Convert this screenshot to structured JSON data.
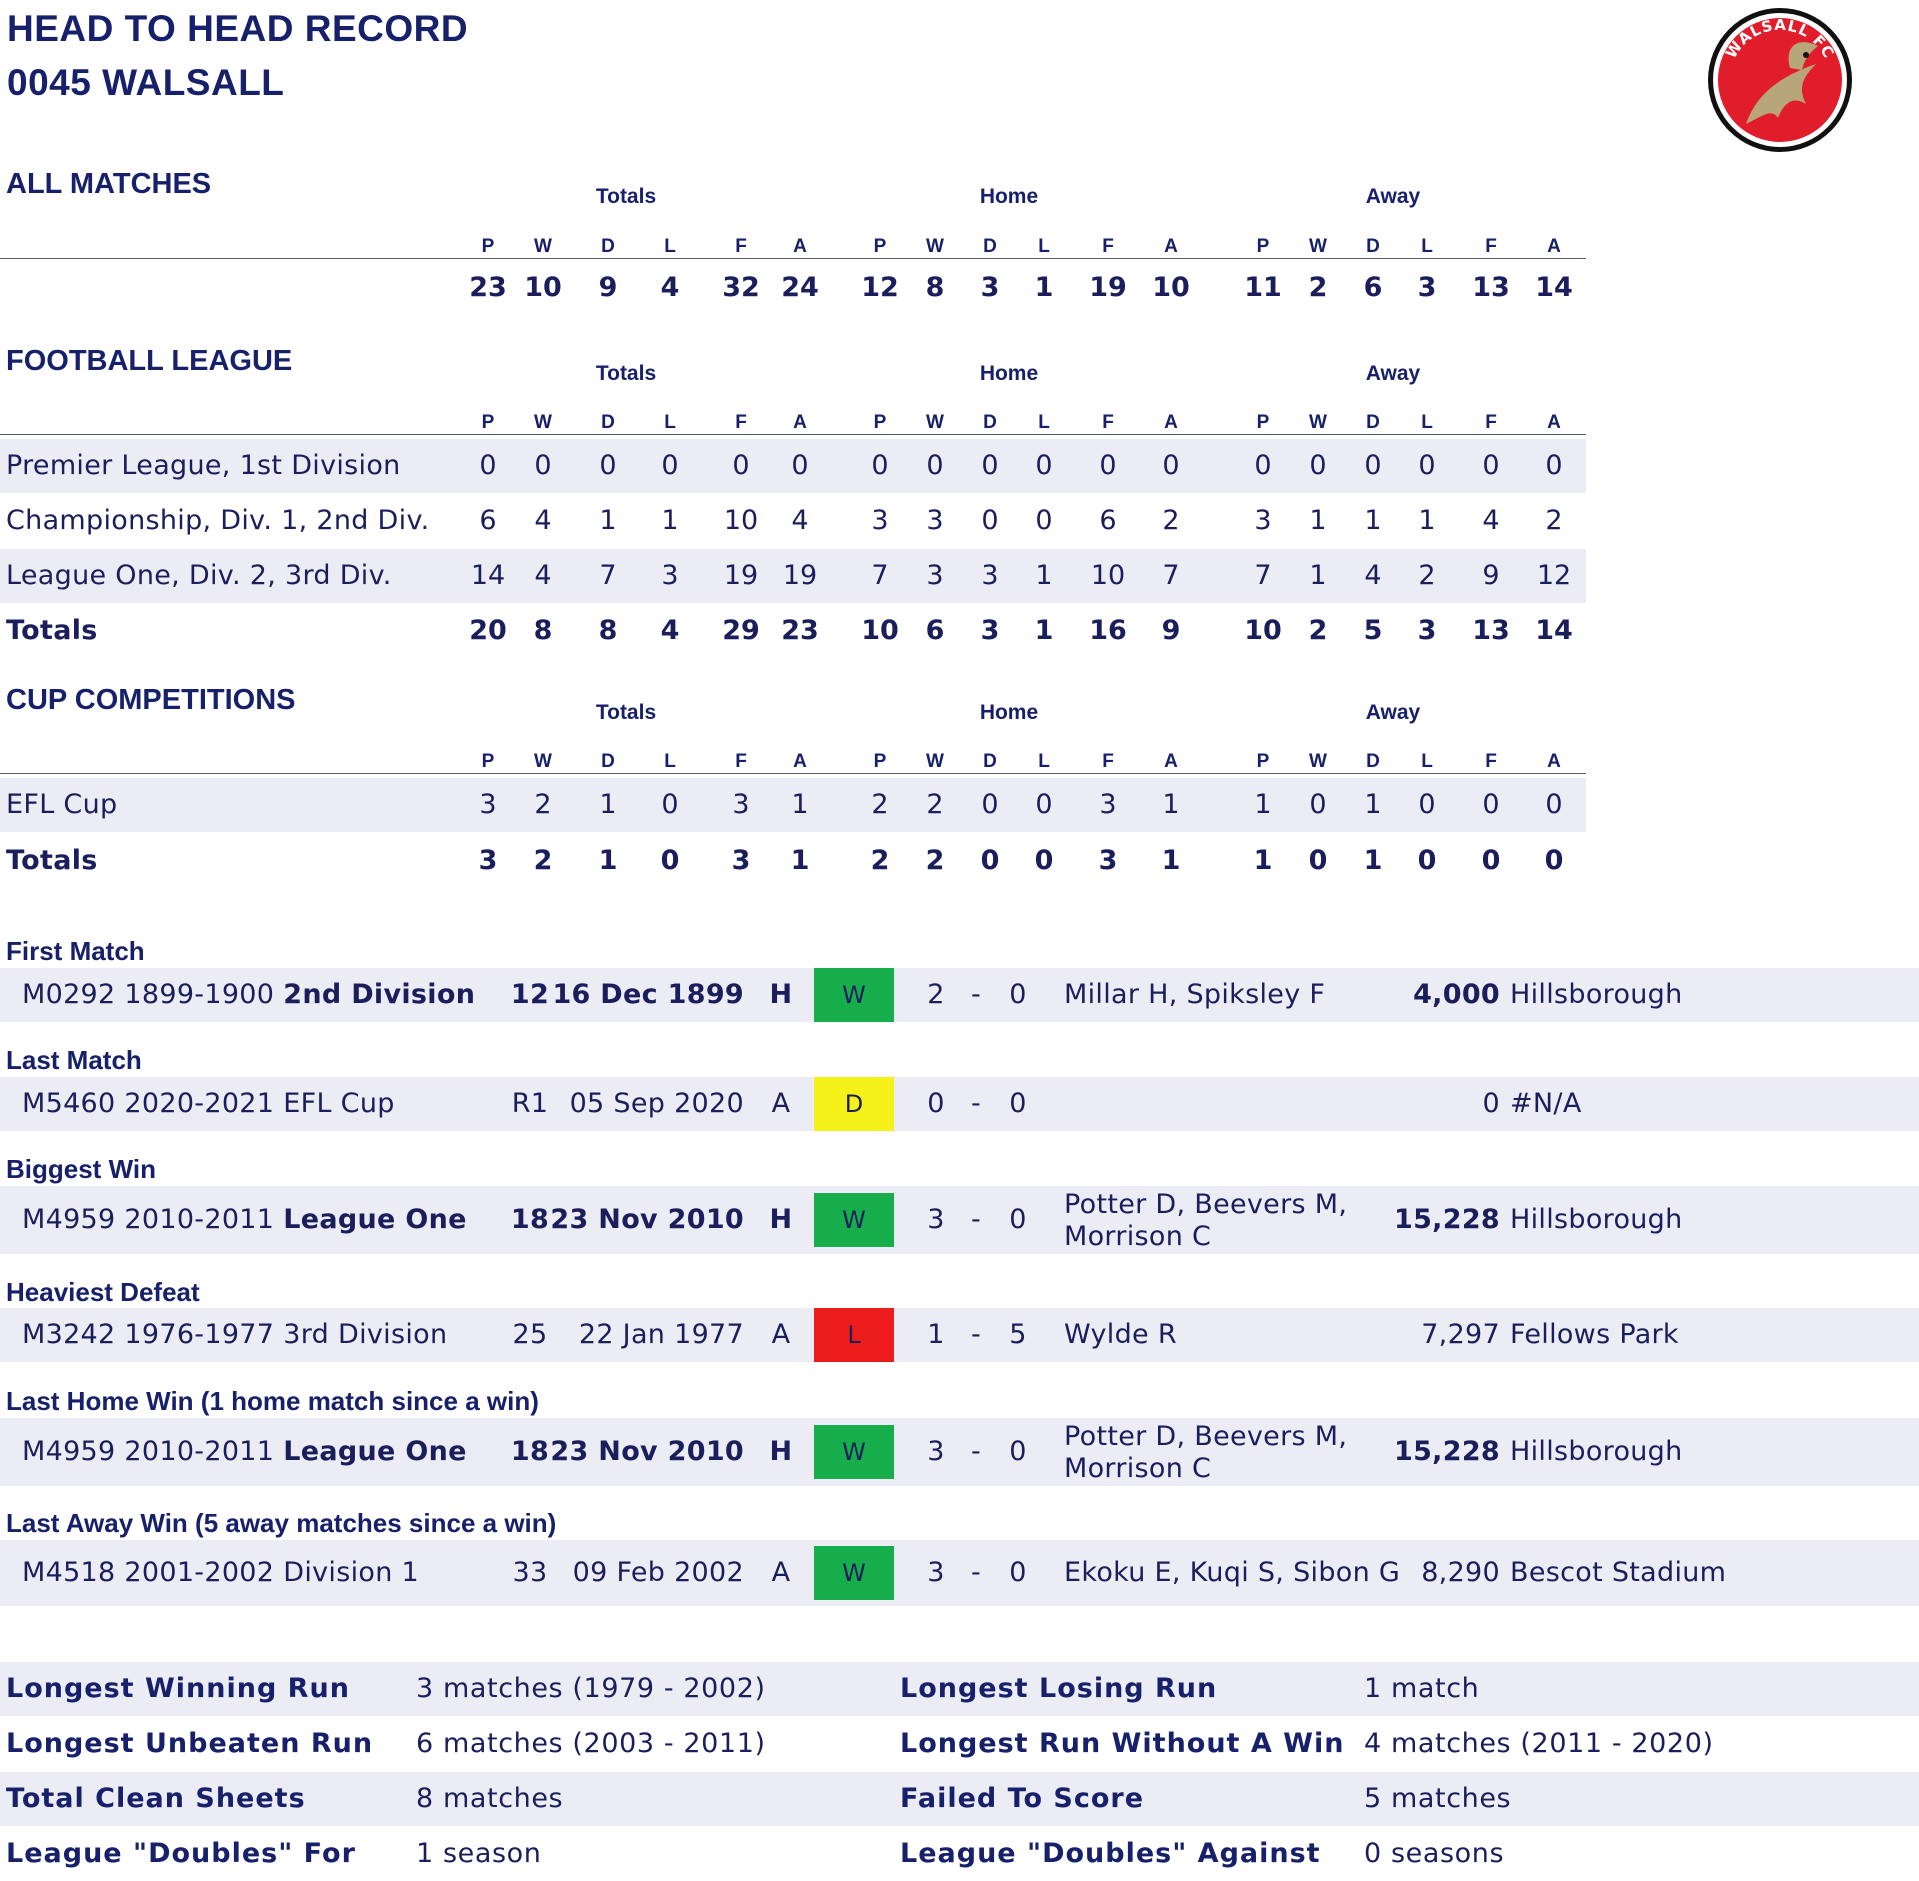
{
  "header": {
    "title_line1": "HEAD TO HEAD RECORD",
    "title_line2": "0045  WALSALL",
    "logo_text": "WALSALL FC"
  },
  "colors": {
    "win": "#16ad4b",
    "draw": "#f5f21a",
    "loss": "#ed1c1c",
    "navy": "#17206b",
    "band": "#ececf5"
  },
  "col_groups": [
    "Totals",
    "Home",
    "Away"
  ],
  "col_headers": [
    "P",
    "W",
    "D",
    "L",
    "F",
    "A",
    "P",
    "W",
    "D",
    "L",
    "F",
    "A",
    "P",
    "W",
    "D",
    "L",
    "F",
    "A"
  ],
  "all_matches": {
    "title": "ALL MATCHES",
    "values": [
      "23",
      "10",
      "9",
      "4",
      "32",
      "24",
      "12",
      "8",
      "3",
      "1",
      "19",
      "10",
      "11",
      "2",
      "6",
      "3",
      "13",
      "14"
    ]
  },
  "football_league": {
    "title": "FOOTBALL LEAGUE",
    "rows": [
      {
        "label": "Premier League, 1st Division",
        "values": [
          "0",
          "0",
          "0",
          "0",
          "0",
          "0",
          "0",
          "0",
          "0",
          "0",
          "0",
          "0",
          "0",
          "0",
          "0",
          "0",
          "0",
          "0"
        ]
      },
      {
        "label": "Championship, Div. 1, 2nd Div.",
        "values": [
          "6",
          "4",
          "1",
          "1",
          "10",
          "4",
          "3",
          "3",
          "0",
          "0",
          "6",
          "2",
          "3",
          "1",
          "1",
          "1",
          "4",
          "2"
        ]
      },
      {
        "label": "League One, Div. 2, 3rd Div.",
        "values": [
          "14",
          "4",
          "7",
          "3",
          "19",
          "19",
          "7",
          "3",
          "3",
          "1",
          "10",
          "7",
          "7",
          "1",
          "4",
          "2",
          "9",
          "12"
        ]
      }
    ],
    "totals": {
      "label": "Totals",
      "values": [
        "20",
        "8",
        "8",
        "4",
        "29",
        "23",
        "10",
        "6",
        "3",
        "1",
        "16",
        "9",
        "10",
        "2",
        "5",
        "3",
        "13",
        "14"
      ]
    }
  },
  "cup_competitions": {
    "title": "CUP COMPETITIONS",
    "rows": [
      {
        "label": "EFL Cup",
        "values": [
          "3",
          "2",
          "1",
          "0",
          "3",
          "1",
          "2",
          "2",
          "0",
          "0",
          "3",
          "1",
          "1",
          "0",
          "1",
          "0",
          "0",
          "0"
        ]
      }
    ],
    "totals": {
      "label": "Totals",
      "values": [
        "3",
        "2",
        "1",
        "0",
        "3",
        "1",
        "2",
        "2",
        "0",
        "0",
        "3",
        "1",
        "1",
        "0",
        "1",
        "0",
        "0",
        "0"
      ]
    }
  },
  "matches": [
    {
      "title": "First Match",
      "id_season": "M0292  1899-1900",
      "comp": "2nd Division",
      "comp_bold": true,
      "pos": "12",
      "date": "16 Dec 1899",
      "venue": "H",
      "result": "W",
      "hs": "2",
      "as": "0",
      "scorers": [
        "Millar H, Spiksley F"
      ],
      "attendance": "4,000",
      "ground": "Hillsborough"
    },
    {
      "title": "Last Match",
      "id_season": "M5460  2020-2021",
      "comp": "EFL Cup",
      "comp_bold": false,
      "pos": "R1",
      "date": "05 Sep 2020",
      "venue": "A",
      "result": "D",
      "hs": "0",
      "as": "0",
      "scorers": [],
      "attendance": "0",
      "ground": "#N/A"
    },
    {
      "title": "Biggest Win",
      "id_season": "M4959  2010-2011",
      "comp": "League One",
      "comp_bold": true,
      "pos": "18",
      "date": "23 Nov 2010",
      "venue": "H",
      "result": "W",
      "hs": "3",
      "as": "0",
      "scorers": [
        "Potter D, Beevers M,",
        "Morrison C"
      ],
      "attendance": "15,228",
      "ground": "Hillsborough"
    },
    {
      "title": "Heaviest Defeat",
      "id_season": "M3242  1976-1977",
      "comp": "3rd Division",
      "comp_bold": false,
      "pos": "25",
      "date": "22 Jan 1977",
      "venue": "A",
      "result": "L",
      "hs": "1",
      "as": "5",
      "scorers": [
        "Wylde R"
      ],
      "attendance": "7,297",
      "ground": "Fellows Park"
    },
    {
      "title": "Last Home Win (1 home match since a win)",
      "id_season": "M4959  2010-2011",
      "comp": "League One",
      "comp_bold": true,
      "pos": "18",
      "date": "23 Nov 2010",
      "venue": "H",
      "result": "W",
      "hs": "3",
      "as": "0",
      "scorers": [
        "Potter D, Beevers M,",
        "Morrison C"
      ],
      "attendance": "15,228",
      "ground": "Hillsborough"
    },
    {
      "title": "Last Away Win (5 away matches since a win)",
      "id_season": "M4518  2001-2002",
      "comp": "Division 1",
      "comp_bold": false,
      "pos": "33",
      "date": "09 Feb 2002",
      "venue": "A",
      "result": "W",
      "hs": "3",
      "as": "0",
      "scorers": [
        "Ekoku E, Kuqi S, Sibon G"
      ],
      "attendance": "8,290",
      "ground": "Bescot Stadium"
    }
  ],
  "score_dash": "-",
  "stats": [
    {
      "left_label": "Longest Winning Run",
      "left_value": "3  matches (1979 - 2002)",
      "right_label": "Longest Losing Run",
      "right_value": "1  match"
    },
    {
      "left_label": "Longest Unbeaten Run",
      "left_value": "6  matches (2003 - 2011)",
      "right_label": "Longest Run Without A Win",
      "right_value": "4  matches (2011 - 2020)"
    },
    {
      "left_label": "Total Clean Sheets",
      "left_value": "8  matches",
      "right_label": "Failed To Score",
      "right_value": "5  matches"
    },
    {
      "left_label": "League \"Doubles\" For",
      "left_value": "1  season",
      "right_label": "League \"Doubles\" Against",
      "right_value": "0  seasons"
    }
  ]
}
